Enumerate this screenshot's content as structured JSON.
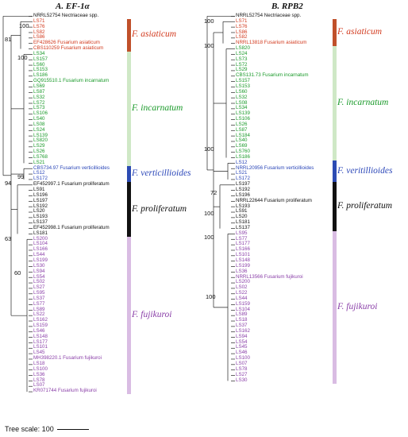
{
  "colors": {
    "asiaticum": "#d23a1e",
    "incarnatum": "#1a9a2a",
    "verticillioides": "#2a46b8",
    "proliferatum": "#111111",
    "fujikuroi": "#8a3fa8",
    "outgroup": "#111111"
  },
  "bar_colors": {
    "asiaticum": "#c0502a",
    "incarnatum": "#cfe8c6",
    "verticillioides": "#2c4bb3",
    "proliferatum": "#111111",
    "fujikuroi": "#d9bce3"
  },
  "panel_a": {
    "title": "A. EF-1α",
    "taxa": [
      {
        "label": "NRRL52754 Nectriaceae spp.",
        "group": "outgroup"
      },
      {
        "label": "LS71",
        "group": "asiaticum"
      },
      {
        "label": "LS76",
        "group": "asiaticum"
      },
      {
        "label": "LS82",
        "group": "asiaticum"
      },
      {
        "label": "LS86",
        "group": "asiaticum"
      },
      {
        "label": "EF428626 Fusarium asiaticum",
        "group": "asiaticum"
      },
      {
        "label": "CBS110259 Fusarium asiaticum",
        "group": "asiaticum"
      },
      {
        "label": "LS34",
        "group": "incarnatum"
      },
      {
        "label": "LS157",
        "group": "incarnatum"
      },
      {
        "label": "LS60",
        "group": "incarnatum"
      },
      {
        "label": "LS153",
        "group": "incarnatum"
      },
      {
        "label": "LS186",
        "group": "incarnatum"
      },
      {
        "label": "GQ915510.1 Fusarium incarnatum",
        "group": "incarnatum"
      },
      {
        "label": "LS69",
        "group": "incarnatum"
      },
      {
        "label": "LS87",
        "group": "incarnatum"
      },
      {
        "label": "LS32",
        "group": "incarnatum"
      },
      {
        "label": "LS72",
        "group": "incarnatum"
      },
      {
        "label": "LS73",
        "group": "incarnatum"
      },
      {
        "label": "LS106",
        "group": "incarnatum"
      },
      {
        "label": "LS40",
        "group": "incarnatum"
      },
      {
        "label": "LS08",
        "group": "incarnatum"
      },
      {
        "label": "LS24",
        "group": "incarnatum"
      },
      {
        "label": "LS139",
        "group": "incarnatum"
      },
      {
        "label": "LS820",
        "group": "incarnatum"
      },
      {
        "label": "LS29",
        "group": "incarnatum"
      },
      {
        "label": "LS26",
        "group": "incarnatum"
      },
      {
        "label": "LS768",
        "group": "incarnatum"
      },
      {
        "label": "LS21",
        "group": "incarnatum"
      },
      {
        "label": "CBS734.97 Fusarium verticillioides",
        "group": "verticillioides"
      },
      {
        "label": "LS12",
        "group": "verticillioides"
      },
      {
        "label": "LS172",
        "group": "verticillioides"
      },
      {
        "label": "EF452997.1 Fusarium proliferatum",
        "group": "proliferatum"
      },
      {
        "label": "LS91",
        "group": "proliferatum"
      },
      {
        "label": "LS196",
        "group": "proliferatum"
      },
      {
        "label": "LS197",
        "group": "proliferatum"
      },
      {
        "label": "LS192",
        "group": "proliferatum"
      },
      {
        "label": "LS20",
        "group": "proliferatum"
      },
      {
        "label": "LS193",
        "group": "proliferatum"
      },
      {
        "label": "LS137",
        "group": "proliferatum"
      },
      {
        "label": "EF452998.1 Fusarium proliferatum",
        "group": "proliferatum"
      },
      {
        "label": "LS181",
        "group": "proliferatum"
      },
      {
        "label": "LS200",
        "group": "fujikuroi"
      },
      {
        "label": "LS104",
        "group": "fujikuroi"
      },
      {
        "label": "LS166",
        "group": "fujikuroi"
      },
      {
        "label": "LS44",
        "group": "fujikuroi"
      },
      {
        "label": "LS199",
        "group": "fujikuroi"
      },
      {
        "label": "LS30",
        "group": "fujikuroi"
      },
      {
        "label": "LS94",
        "group": "fujikuroi"
      },
      {
        "label": "LS54",
        "group": "fujikuroi"
      },
      {
        "label": "LS02",
        "group": "fujikuroi"
      },
      {
        "label": "LS27",
        "group": "fujikuroi"
      },
      {
        "label": "LS95",
        "group": "fujikuroi"
      },
      {
        "label": "LS37",
        "group": "fujikuroi"
      },
      {
        "label": "LS77",
        "group": "fujikuroi"
      },
      {
        "label": "LS89",
        "group": "fujikuroi"
      },
      {
        "label": "LS22",
        "group": "fujikuroi"
      },
      {
        "label": "LS162",
        "group": "fujikuroi"
      },
      {
        "label": "LS159",
        "group": "fujikuroi"
      },
      {
        "label": "LS46",
        "group": "fujikuroi"
      },
      {
        "label": "LS148",
        "group": "fujikuroi"
      },
      {
        "label": "LS177",
        "group": "fujikuroi"
      },
      {
        "label": "LS101",
        "group": "fujikuroi"
      },
      {
        "label": "LS45",
        "group": "fujikuroi"
      },
      {
        "label": "MH398220.1 Fusarium fujikuroi",
        "group": "fujikuroi"
      },
      {
        "label": "LS18",
        "group": "fujikuroi"
      },
      {
        "label": "LS100",
        "group": "fujikuroi"
      },
      {
        "label": "LS36",
        "group": "fujikuroi"
      },
      {
        "label": "LS78",
        "group": "fujikuroi"
      },
      {
        "label": "LS07",
        "group": "fujikuroi"
      },
      {
        "label": "KR071744 Fusarium fujikuroi",
        "group": "fujikuroi"
      }
    ],
    "bootstrap": [
      "100",
      "81",
      "100",
      "99",
      "94",
      "63",
      "60"
    ],
    "species_labels": [
      {
        "text": "F. asiaticum",
        "group": "asiaticum"
      },
      {
        "text": "F. incarnatum",
        "group": "incarnatum"
      },
      {
        "text": "F. verticillioides",
        "group": "verticillioides"
      },
      {
        "text": "F. proliferatum",
        "group": "proliferatum"
      },
      {
        "text": "F. fujikuroi",
        "group": "fujikuroi"
      }
    ]
  },
  "panel_b": {
    "title": "B. RPB2",
    "taxa": [
      {
        "label": "NRRL52754 Nectriaceae spp.",
        "group": "outgroup"
      },
      {
        "label": "LS71",
        "group": "asiaticum"
      },
      {
        "label": "LS76",
        "group": "asiaticum"
      },
      {
        "label": "LS86",
        "group": "asiaticum"
      },
      {
        "label": "LS82",
        "group": "asiaticum"
      },
      {
        "label": "NRRL13818 Fusarium asiaticum",
        "group": "asiaticum"
      },
      {
        "label": "LS820",
        "group": "incarnatum"
      },
      {
        "label": "LS24",
        "group": "incarnatum"
      },
      {
        "label": "LS73",
        "group": "incarnatum"
      },
      {
        "label": "LS72",
        "group": "incarnatum"
      },
      {
        "label": "LS29",
        "group": "incarnatum"
      },
      {
        "label": "CBS131.73 Fusarium incarnatum",
        "group": "incarnatum"
      },
      {
        "label": "LS157",
        "group": "incarnatum"
      },
      {
        "label": "LS153",
        "group": "incarnatum"
      },
      {
        "label": "LS60",
        "group": "incarnatum"
      },
      {
        "label": "LS32",
        "group": "incarnatum"
      },
      {
        "label": "LS08",
        "group": "incarnatum"
      },
      {
        "label": "LS34",
        "group": "incarnatum"
      },
      {
        "label": "LS139",
        "group": "incarnatum"
      },
      {
        "label": "LS106",
        "group": "incarnatum"
      },
      {
        "label": "LS26",
        "group": "incarnatum"
      },
      {
        "label": "LS87",
        "group": "incarnatum"
      },
      {
        "label": "LS184",
        "group": "incarnatum"
      },
      {
        "label": "LS40",
        "group": "incarnatum"
      },
      {
        "label": "LS69",
        "group": "incarnatum"
      },
      {
        "label": "LS760",
        "group": "incarnatum"
      },
      {
        "label": "LS186",
        "group": "incarnatum"
      },
      {
        "label": "LS12",
        "group": "verticillioides"
      },
      {
        "label": "NRRL20956 Fusarium verticillioides",
        "group": "verticillioides"
      },
      {
        "label": "LS21",
        "group": "verticillioides"
      },
      {
        "label": "LS172",
        "group": "verticillioides"
      },
      {
        "label": "LS197",
        "group": "proliferatum"
      },
      {
        "label": "LS192",
        "group": "proliferatum"
      },
      {
        "label": "LS196",
        "group": "proliferatum"
      },
      {
        "label": "NRRL22644 Fusarium proliferatum",
        "group": "proliferatum"
      },
      {
        "label": "LS193",
        "group": "proliferatum"
      },
      {
        "label": "LS91",
        "group": "proliferatum"
      },
      {
        "label": "LS20",
        "group": "proliferatum"
      },
      {
        "label": "LS181",
        "group": "proliferatum"
      },
      {
        "label": "LS137",
        "group": "proliferatum"
      },
      {
        "label": "LS95",
        "group": "fujikuroi"
      },
      {
        "label": "LS77",
        "group": "fujikuroi"
      },
      {
        "label": "LS177",
        "group": "fujikuroi"
      },
      {
        "label": "LS166",
        "group": "fujikuroi"
      },
      {
        "label": "LS101",
        "group": "fujikuroi"
      },
      {
        "label": "LS148",
        "group": "fujikuroi"
      },
      {
        "label": "LS199",
        "group": "fujikuroi"
      },
      {
        "label": "LS36",
        "group": "fujikuroi"
      },
      {
        "label": "NRRL13566 Fusarium fujikuroi",
        "group": "fujikuroi"
      },
      {
        "label": "LS200",
        "group": "fujikuroi"
      },
      {
        "label": "LS02",
        "group": "fujikuroi"
      },
      {
        "label": "LS22",
        "group": "fujikuroi"
      },
      {
        "label": "LS44",
        "group": "fujikuroi"
      },
      {
        "label": "LS159",
        "group": "fujikuroi"
      },
      {
        "label": "LS104",
        "group": "fujikuroi"
      },
      {
        "label": "LS89",
        "group": "fujikuroi"
      },
      {
        "label": "LS18",
        "group": "fujikuroi"
      },
      {
        "label": "LS37",
        "group": "fujikuroi"
      },
      {
        "label": "LS162",
        "group": "fujikuroi"
      },
      {
        "label": "LS94",
        "group": "fujikuroi"
      },
      {
        "label": "LS54",
        "group": "fujikuroi"
      },
      {
        "label": "LS45",
        "group": "fujikuroi"
      },
      {
        "label": "LS46",
        "group": "fujikuroi"
      },
      {
        "label": "LS100",
        "group": "fujikuroi"
      },
      {
        "label": "LS07",
        "group": "fujikuroi"
      },
      {
        "label": "LS78",
        "group": "fujikuroi"
      },
      {
        "label": "LS27",
        "group": "fujikuroi"
      },
      {
        "label": "LS30",
        "group": "fujikuroi"
      }
    ],
    "bootstrap": [
      "100",
      "100",
      "100",
      "72",
      "100",
      "100",
      "100"
    ],
    "species_labels": [
      {
        "text": "F. asiaticum",
        "group": "asiaticum"
      },
      {
        "text": "F. incarnatum",
        "group": "incarnatum"
      },
      {
        "text": "F. veritillioides",
        "group": "verticillioides"
      },
      {
        "text": "F. proliferatum",
        "group": "proliferatum"
      },
      {
        "text": "F. fujikuroi",
        "group": "fujikuroi"
      }
    ]
  },
  "tree_scale": {
    "label": "Tree scale: 100"
  }
}
